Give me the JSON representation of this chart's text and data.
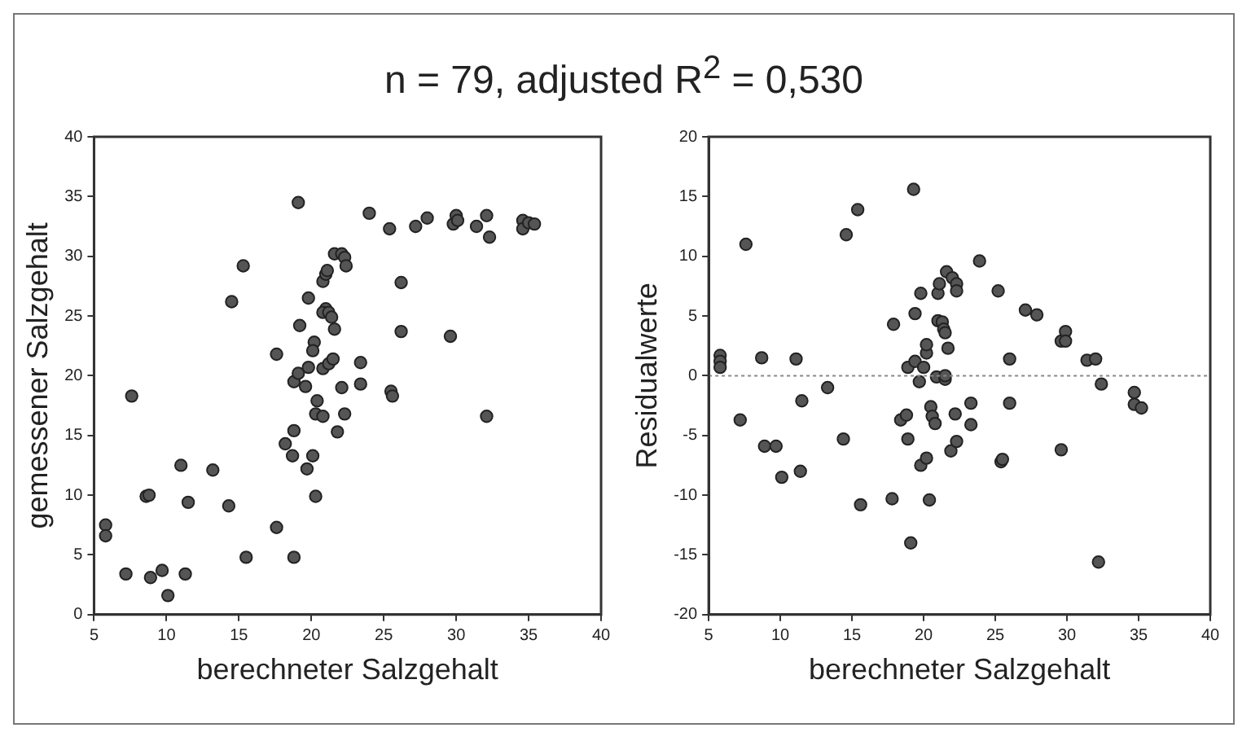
{
  "chart_data": [
    {
      "type": "scatter",
      "title": "n = 79, adjusted R$^{2}$ = 0,530",
      "xlabel": "berechneter Salzgehalt",
      "ylabel": "gemessener Salzgehalt",
      "xlim": [
        5,
        40
      ],
      "xticks": [
        5,
        10,
        15,
        20,
        25,
        30,
        35,
        40
      ],
      "ylim": [
        0,
        40
      ],
      "yticks": [
        0,
        5,
        10,
        15,
        20,
        25,
        30,
        35,
        40
      ],
      "grid": false,
      "legend": false,
      "marker": "circle",
      "series": [
        {
          "color": "#555555",
          "x": [
            5.8,
            5.8,
            7.2,
            7.6,
            8.6,
            8.8,
            8.9,
            9.7,
            10.1,
            11.0,
            11.3,
            11.5,
            13.2,
            14.3,
            14.5,
            15.3,
            15.5,
            17.6,
            17.6,
            18.2,
            18.8,
            18.7,
            18.8,
            19.1,
            18.8,
            19.1,
            19.2,
            19.6,
            19.8,
            19.7,
            19.8,
            20.1,
            20.2,
            20.1,
            20.4,
            20.3,
            20.3,
            20.8,
            20.8,
            20.8,
            21.0,
            21.1,
            21.0,
            20.8,
            21.2,
            21.4,
            21.2,
            21.5,
            21.6,
            21.6,
            21.8,
            22.1,
            22.3,
            22.4,
            22.1,
            22.3,
            23.4,
            23.4,
            24.0,
            25.4,
            25.5,
            25.6,
            26.2,
            26.2,
            27.2,
            28.0,
            29.6,
            29.8,
            30.0,
            30.1,
            31.4,
            32.1,
            32.3,
            32.1,
            34.6,
            34.6,
            35.0,
            35.4
          ],
          "values": [
            7.5,
            6.6,
            3.4,
            18.3,
            9.9,
            10.0,
            3.1,
            3.7,
            1.6,
            12.5,
            3.4,
            9.4,
            12.1,
            9.1,
            26.2,
            29.2,
            4.8,
            7.3,
            21.8,
            14.3,
            15.4,
            13.3,
            4.8,
            34.5,
            19.5,
            20.2,
            24.2,
            19.1,
            26.5,
            12.2,
            20.7,
            13.3,
            22.8,
            22.1,
            17.9,
            9.9,
            16.8,
            16.6,
            20.6,
            27.9,
            28.5,
            28.8,
            25.6,
            25.3,
            25.3,
            24.9,
            21.0,
            21.4,
            23.9,
            30.2,
            15.3,
            30.2,
            29.9,
            29.2,
            19.0,
            16.8,
            21.1,
            19.3,
            33.6,
            32.3,
            18.7,
            18.3,
            27.8,
            23.7,
            32.5,
            33.2,
            23.3,
            32.7,
            33.4,
            33.0,
            32.5,
            33.4,
            31.6,
            16.6,
            33.0,
            32.3,
            32.8,
            32.7
          ]
        }
      ]
    },
    {
      "type": "scatter",
      "xlabel": "berechneter Salzgehalt",
      "ylabel": "Residualwerte",
      "xlim": [
        5,
        40
      ],
      "xticks": [
        5,
        10,
        15,
        20,
        25,
        30,
        35,
        40
      ],
      "ylim": [
        -20,
        20
      ],
      "yticks": [
        -20,
        -15,
        -10,
        -5,
        0,
        5,
        10,
        15,
        20
      ],
      "grid": false,
      "legend": false,
      "marker": "circle",
      "ref_lines": [
        {
          "axis": "y",
          "value": 0,
          "line_style": "dotted",
          "color": "#888888"
        }
      ],
      "series": [
        {
          "color": "#555555",
          "x": [
            5.8,
            5.8,
            5.8,
            7.2,
            7.6,
            8.7,
            8.9,
            9.7,
            10.1,
            11.1,
            11.5,
            11.4,
            13.3,
            14.4,
            14.6,
            15.4,
            15.6,
            17.8,
            17.9,
            18.4,
            18.8,
            18.9,
            18.9,
            19.1,
            19.3,
            19.4,
            19.4,
            19.7,
            19.8,
            19.8,
            20.0,
            20.2,
            20.2,
            20.2,
            20.4,
            20.5,
            20.6,
            20.8,
            20.9,
            21.0,
            21.0,
            21.1,
            21.3,
            21.4,
            21.5,
            21.5,
            21.5,
            21.6,
            21.7,
            21.9,
            22.0,
            22.2,
            22.3,
            22.3,
            22.3,
            23.3,
            23.3,
            23.9,
            25.2,
            25.4,
            25.5,
            26.0,
            26.0,
            27.1,
            27.9,
            29.6,
            29.6,
            29.9,
            29.9,
            31.4,
            32.0,
            32.2,
            32.4,
            34.7,
            34.7,
            35.2
          ],
          "values": [
            1.7,
            1.2,
            0.7,
            -3.7,
            11.0,
            1.5,
            -5.9,
            -5.9,
            -8.5,
            1.4,
            -2.1,
            -8.0,
            -1.0,
            -5.3,
            11.8,
            13.9,
            -10.8,
            -10.3,
            4.3,
            -3.7,
            -3.3,
            -5.3,
            0.7,
            -14.0,
            15.6,
            5.2,
            1.2,
            -0.5,
            -7.5,
            6.9,
            0.7,
            -6.9,
            1.9,
            2.6,
            -10.4,
            -2.6,
            -3.4,
            -4.0,
            -0.1,
            6.9,
            4.6,
            7.7,
            4.5,
            3.9,
            3.6,
            -0.3,
            0.0,
            8.7,
            2.3,
            -6.3,
            8.2,
            -3.2,
            7.7,
            -5.5,
            7.1,
            -2.3,
            -4.1,
            9.6,
            7.1,
            -7.2,
            -7.0,
            1.4,
            -2.3,
            5.5,
            5.1,
            -6.2,
            2.9,
            3.7,
            2.9,
            1.3,
            1.4,
            -15.6,
            -0.7,
            -1.4,
            -2.4,
            -2.7
          ]
        }
      ]
    }
  ]
}
